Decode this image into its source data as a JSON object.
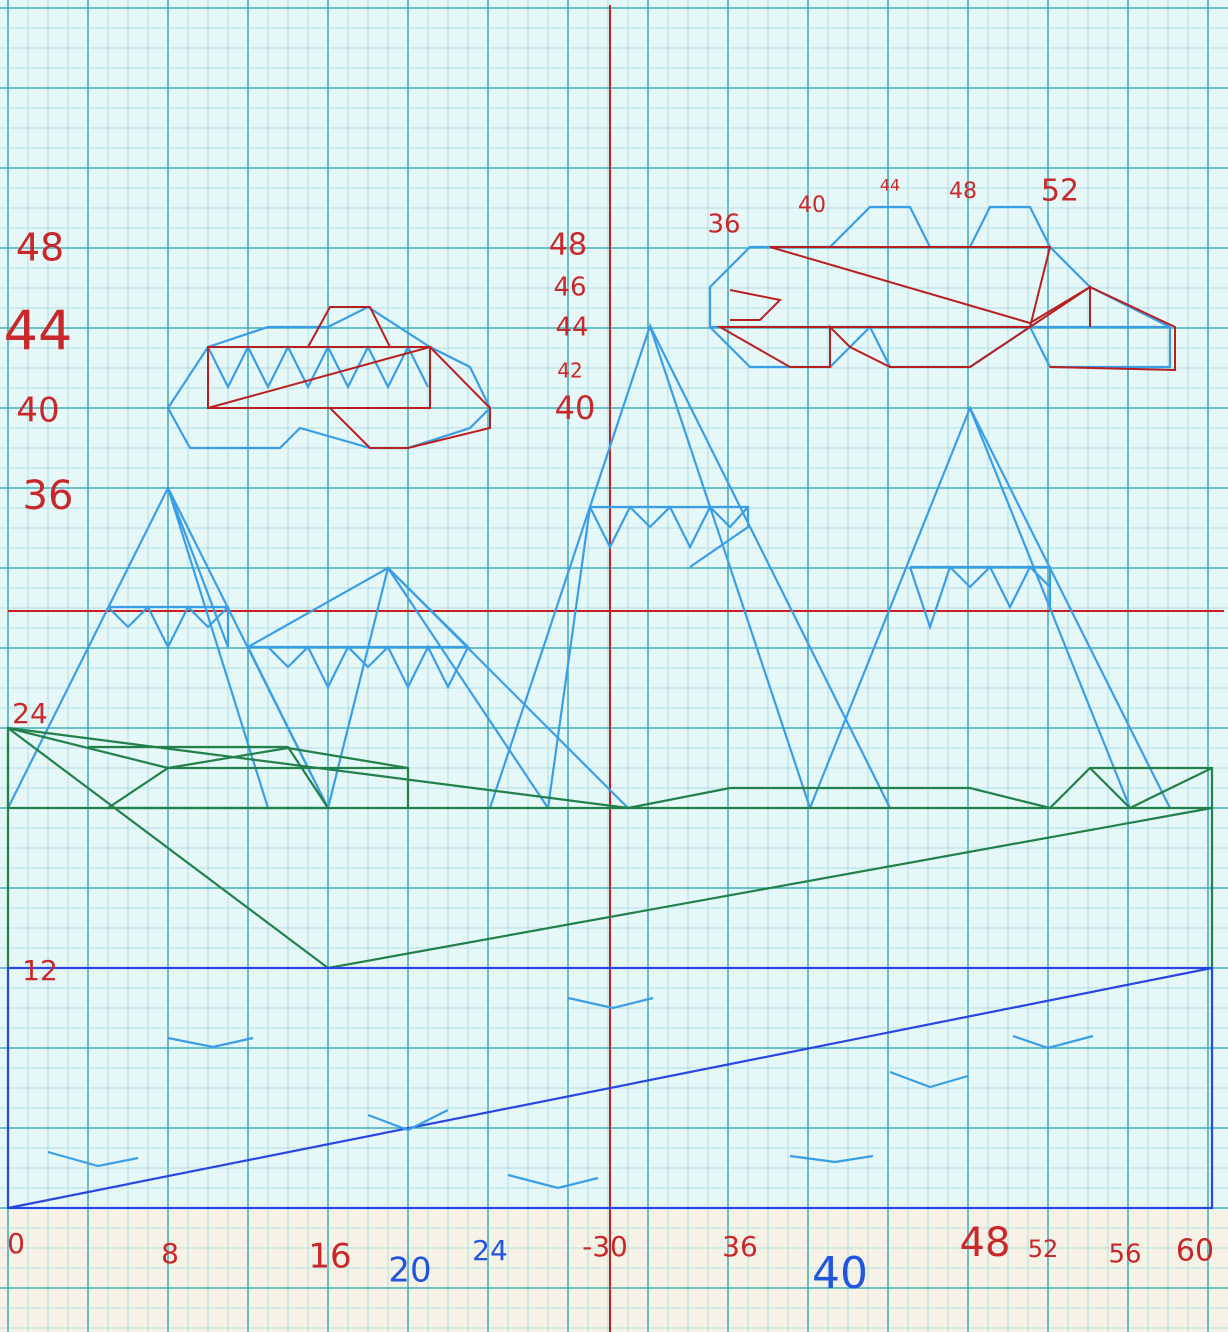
{
  "left_labels": [
    "48",
    "44",
    "40",
    "36",
    "24",
    "12"
  ],
  "center_labels": [
    "48",
    "46",
    "44",
    "42",
    "40"
  ],
  "top_labels": [
    "36",
    "40",
    "44",
    "48",
    "52"
  ],
  "bottom_labels": [
    "0",
    "8",
    "16",
    "20",
    "24",
    "-30",
    "36",
    "40",
    "48",
    "52",
    "56",
    "60"
  ]
}
